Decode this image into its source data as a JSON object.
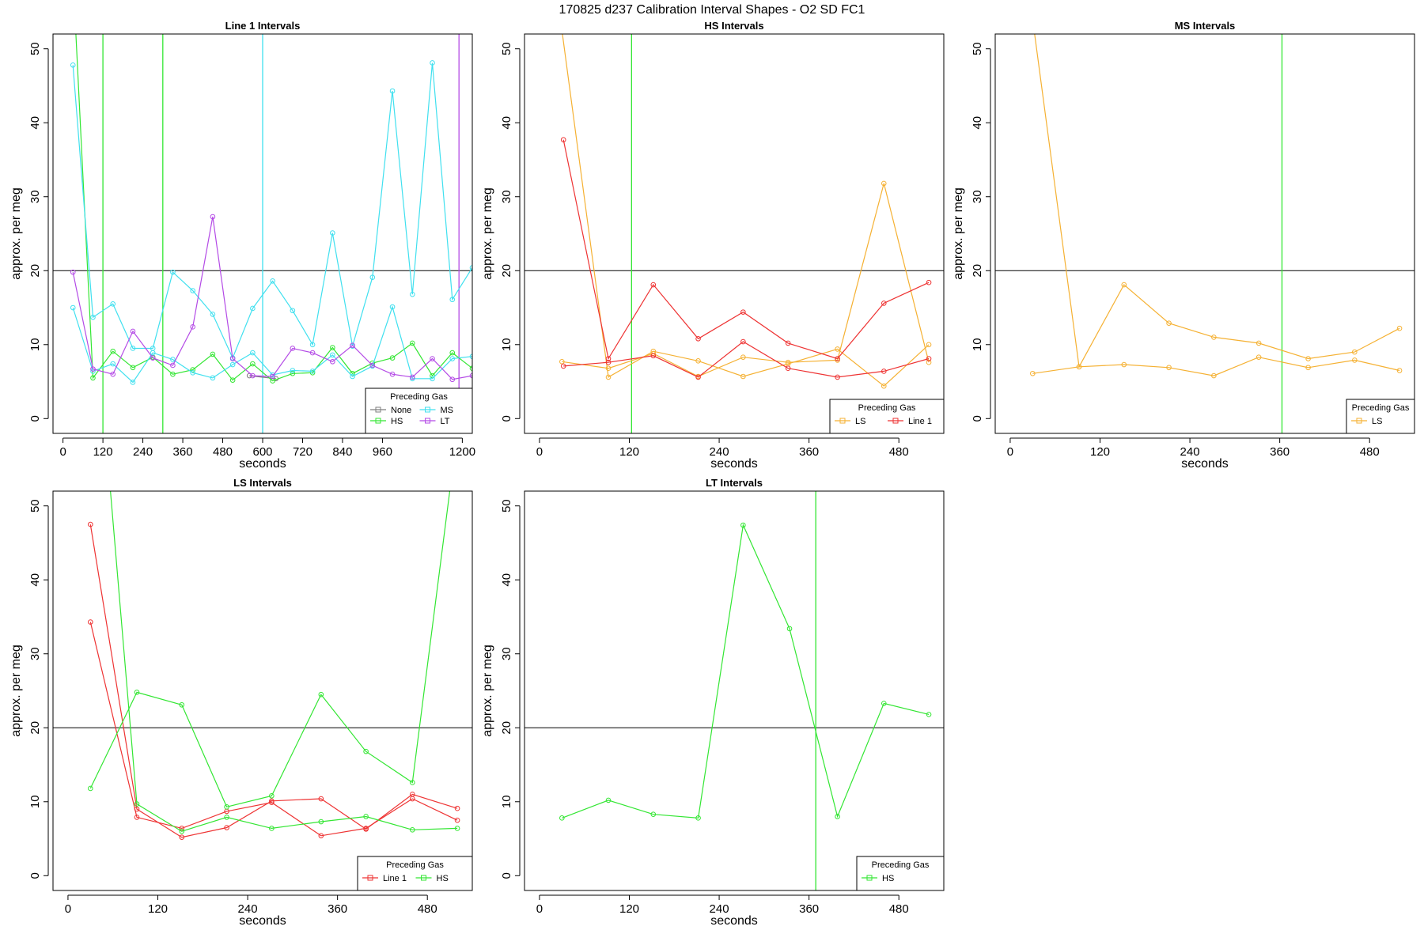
{
  "figure": {
    "title": "170825    d237    Calibration Interval Shapes - O2 SD FC1",
    "ylabel": "approx. per meg",
    "xlabel": "seconds",
    "legend_title": "Preceding Gas"
  },
  "colors": {
    "None": "#7f7f7f",
    "HS": "#33e633",
    "MS": "#40e0ef",
    "LT": "#b44be6",
    "LS": "#f5b133",
    "Line 1": "#ee3333",
    "axis": "#000000",
    "hline": "#000000"
  },
  "chart_data": [
    {
      "type": "line",
      "title": "Line 1 Intervals",
      "xlabel": "seconds",
      "ylabel": "approx. per meg",
      "xlim": [
        -30,
        1230
      ],
      "ylim": [
        -2,
        52
      ],
      "xticks": [
        0,
        120,
        240,
        360,
        480,
        600,
        720,
        840,
        960,
        1200
      ],
      "yticks": [
        0,
        10,
        20,
        30,
        40,
        50
      ],
      "hlines": [
        20
      ],
      "legend_cols": 2,
      "legend_labels": [
        "None",
        "MS",
        "HS",
        "LT"
      ],
      "vlines": [
        {
          "x": 120,
          "color": "HS"
        },
        {
          "x": 300,
          "color": "HS"
        },
        {
          "x": 600,
          "color": "MS"
        },
        {
          "x": 1190,
          "color": "LT"
        }
      ],
      "series": [
        {
          "name": "None",
          "x": [
            560,
            640
          ],
          "y": [
            5.8,
            5.4
          ]
        },
        {
          "name": "HS",
          "x": [
            30,
            90,
            150,
            210,
            270,
            330,
            390,
            450,
            510,
            570,
            630,
            690,
            750,
            810,
            870,
            930,
            990,
            1050,
            1110,
            1170,
            1230
          ],
          "y": [
            60,
            5.5,
            9.1,
            6.9,
            8.3,
            6,
            6.6,
            8.7,
            5.2,
            7.4,
            5.1,
            6.1,
            6.2,
            9.6,
            6.1,
            7.5,
            8.2,
            10.2,
            5.8,
            8.9,
            6.8
          ]
        },
        {
          "name": "MS",
          "x": [
            30,
            90,
            150,
            210,
            270,
            330,
            390,
            450,
            510,
            570,
            630,
            690,
            750,
            810,
            870,
            930,
            990,
            1050,
            1110,
            1170,
            1230
          ],
          "y": [
            47.8,
            13.7,
            15.5,
            9.5,
            9.5,
            19.8,
            17.3,
            14.1,
            8.2,
            14.9,
            18.6,
            14.6,
            10,
            25.1,
            9.8,
            19.1,
            44.3,
            16.8,
            48.1,
            16.1,
            20.4
          ]
        },
        {
          "name": "MS",
          "x": [
            30,
            90,
            150,
            210,
            270,
            330,
            390,
            450,
            510,
            570,
            630,
            690,
            750,
            810,
            870,
            930,
            990,
            1050,
            1110,
            1170,
            1230
          ],
          "y": [
            15,
            6.4,
            7.4,
            4.9,
            8.9,
            8,
            6.2,
            5.5,
            7.3,
            8.9,
            5.9,
            6.5,
            6.4,
            8.6,
            5.7,
            7.1,
            15.1,
            5.4,
            5.4,
            8.1,
            8.4
          ]
        },
        {
          "name": "LT",
          "x": [
            30,
            90,
            150,
            210,
            270,
            330,
            390,
            450,
            510,
            570,
            630,
            690,
            750,
            810,
            870,
            930,
            990,
            1050,
            1110,
            1170,
            1230
          ],
          "y": [
            19.8,
            6.7,
            6,
            11.8,
            8.2,
            7.2,
            12.4,
            27.3,
            8.1,
            5.8,
            5.7,
            9.5,
            8.9,
            7.7,
            9.9,
            7.2,
            6,
            5.6,
            8.1,
            5.3,
            5.8
          ]
        }
      ]
    },
    {
      "type": "line",
      "title": "HS Intervals",
      "xlabel": "seconds",
      "ylabel": "approx. per meg",
      "xlim": [
        -20,
        540
      ],
      "ylim": [
        -2,
        52
      ],
      "xticks": [
        0,
        120,
        240,
        360,
        480
      ],
      "yticks": [
        0,
        10,
        20,
        30,
        40,
        50
      ],
      "hlines": [
        20
      ],
      "legend_cols": 2,
      "legend_labels": [
        "LS",
        "Line 1"
      ],
      "vlines": [
        {
          "x": 123,
          "color": "HS"
        }
      ],
      "series": [
        {
          "name": "LS",
          "x": [
            20,
            92,
            152,
            212,
            272,
            332,
            398,
            460,
            520
          ],
          "y": [
            60,
            5.6,
            9.1,
            7.8,
            5.7,
            7.4,
            9.4,
            4.4,
            10
          ]
        },
        {
          "name": "LS",
          "x": [
            30,
            92,
            152,
            212,
            272,
            332,
            398,
            460,
            520
          ],
          "y": [
            7.7,
            6.8,
            8.8,
            5.7,
            8.3,
            7.6,
            7.9,
            31.8,
            7.6
          ]
        },
        {
          "name": "Line 1",
          "x": [
            32,
            92,
            152,
            212,
            272,
            332,
            398,
            460,
            520
          ],
          "y": [
            37.7,
            8.1,
            18.1,
            10.8,
            14.4,
            10.2,
            8.1,
            15.6,
            18.4
          ]
        },
        {
          "name": "Line 1",
          "x": [
            32,
            92,
            152,
            212,
            272,
            332,
            398,
            460,
            520
          ],
          "y": [
            7.1,
            7.6,
            8.5,
            5.6,
            10.4,
            6.8,
            5.6,
            6.4,
            8.1
          ]
        }
      ]
    },
    {
      "type": "line",
      "title": "MS Intervals",
      "xlabel": "seconds",
      "ylabel": "approx. per meg",
      "xlim": [
        -20,
        540
      ],
      "ylim": [
        -2,
        52
      ],
      "xticks": [
        0,
        120,
        240,
        360,
        480
      ],
      "yticks": [
        0,
        10,
        20,
        30,
        40,
        50
      ],
      "hlines": [
        20
      ],
      "legend_cols": 1,
      "legend_labels": [
        "LS"
      ],
      "vlines": [
        {
          "x": 363,
          "color": "HS"
        }
      ],
      "series": [
        {
          "name": "LS",
          "x": [
            30,
            92,
            152,
            212,
            272,
            332,
            398,
            460,
            520
          ],
          "y": [
            54,
            7,
            18.1,
            12.9,
            11,
            10.2,
            8.1,
            9,
            12.2
          ]
        },
        {
          "name": "LS",
          "x": [
            30,
            92,
            152,
            212,
            272,
            332,
            398,
            460,
            520
          ],
          "y": [
            6.1,
            7,
            7.3,
            6.9,
            5.8,
            8.3,
            6.9,
            7.9,
            6.5
          ]
        }
      ]
    },
    {
      "type": "line",
      "title": "LS Intervals",
      "xlabel": "seconds",
      "ylabel": "approx. per meg",
      "xlim": [
        -20,
        540
      ],
      "ylim": [
        -2,
        52
      ],
      "xticks": [
        0,
        120,
        240,
        360,
        480
      ],
      "yticks": [
        0,
        10,
        20,
        30,
        40,
        50
      ],
      "hlines": [
        20
      ],
      "legend_cols": 2,
      "legend_labels": [
        "Line 1",
        "HS"
      ],
      "vlines": [],
      "series": [
        {
          "name": "Line 1",
          "x": [
            30,
            92,
            152,
            212,
            272,
            338,
            398,
            460,
            520
          ],
          "y": [
            47.5,
            9,
            5.2,
            6.5,
            10.1,
            10.4,
            6.3,
            11,
            9.1
          ]
        },
        {
          "name": "Line 1",
          "x": [
            30,
            92,
            152,
            212,
            272,
            338,
            398,
            460,
            520
          ],
          "y": [
            34.3,
            7.9,
            6.4,
            8.7,
            9.9,
            5.4,
            6.4,
            10.4,
            7.5
          ]
        },
        {
          "name": "HS",
          "x": [
            30,
            92,
            152,
            212,
            272,
            338,
            398,
            460,
            520
          ],
          "y": [
            11.8,
            24.8,
            23.1,
            9.3,
            10.8,
            24.5,
            16.8,
            12.6,
            60
          ]
        },
        {
          "name": "HS",
          "x": [
            50,
            92,
            152,
            212,
            272,
            338,
            398,
            460,
            520
          ],
          "y": [
            60,
            9.7,
            6,
            7.9,
            6.4,
            7.3,
            8,
            6.2,
            6.4
          ]
        }
      ]
    },
    {
      "type": "line",
      "title": "LT Intervals",
      "xlabel": "seconds",
      "ylabel": "approx. per meg",
      "xlim": [
        -20,
        540
      ],
      "ylim": [
        -2,
        52
      ],
      "xticks": [
        0,
        120,
        240,
        360,
        480
      ],
      "yticks": [
        0,
        10,
        20,
        30,
        40,
        50
      ],
      "hlines": [
        20
      ],
      "legend_cols": 1,
      "legend_labels": [
        "HS"
      ],
      "vlines": [
        {
          "x": 369,
          "color": "HS"
        }
      ],
      "series": [
        {
          "name": "HS",
          "x": [
            30,
            92,
            152,
            212,
            272,
            334,
            398,
            460,
            520
          ],
          "y": [
            7.8,
            10.2,
            8.3,
            7.8,
            47.4,
            33.4,
            8,
            23.3,
            21.8
          ]
        }
      ]
    }
  ]
}
